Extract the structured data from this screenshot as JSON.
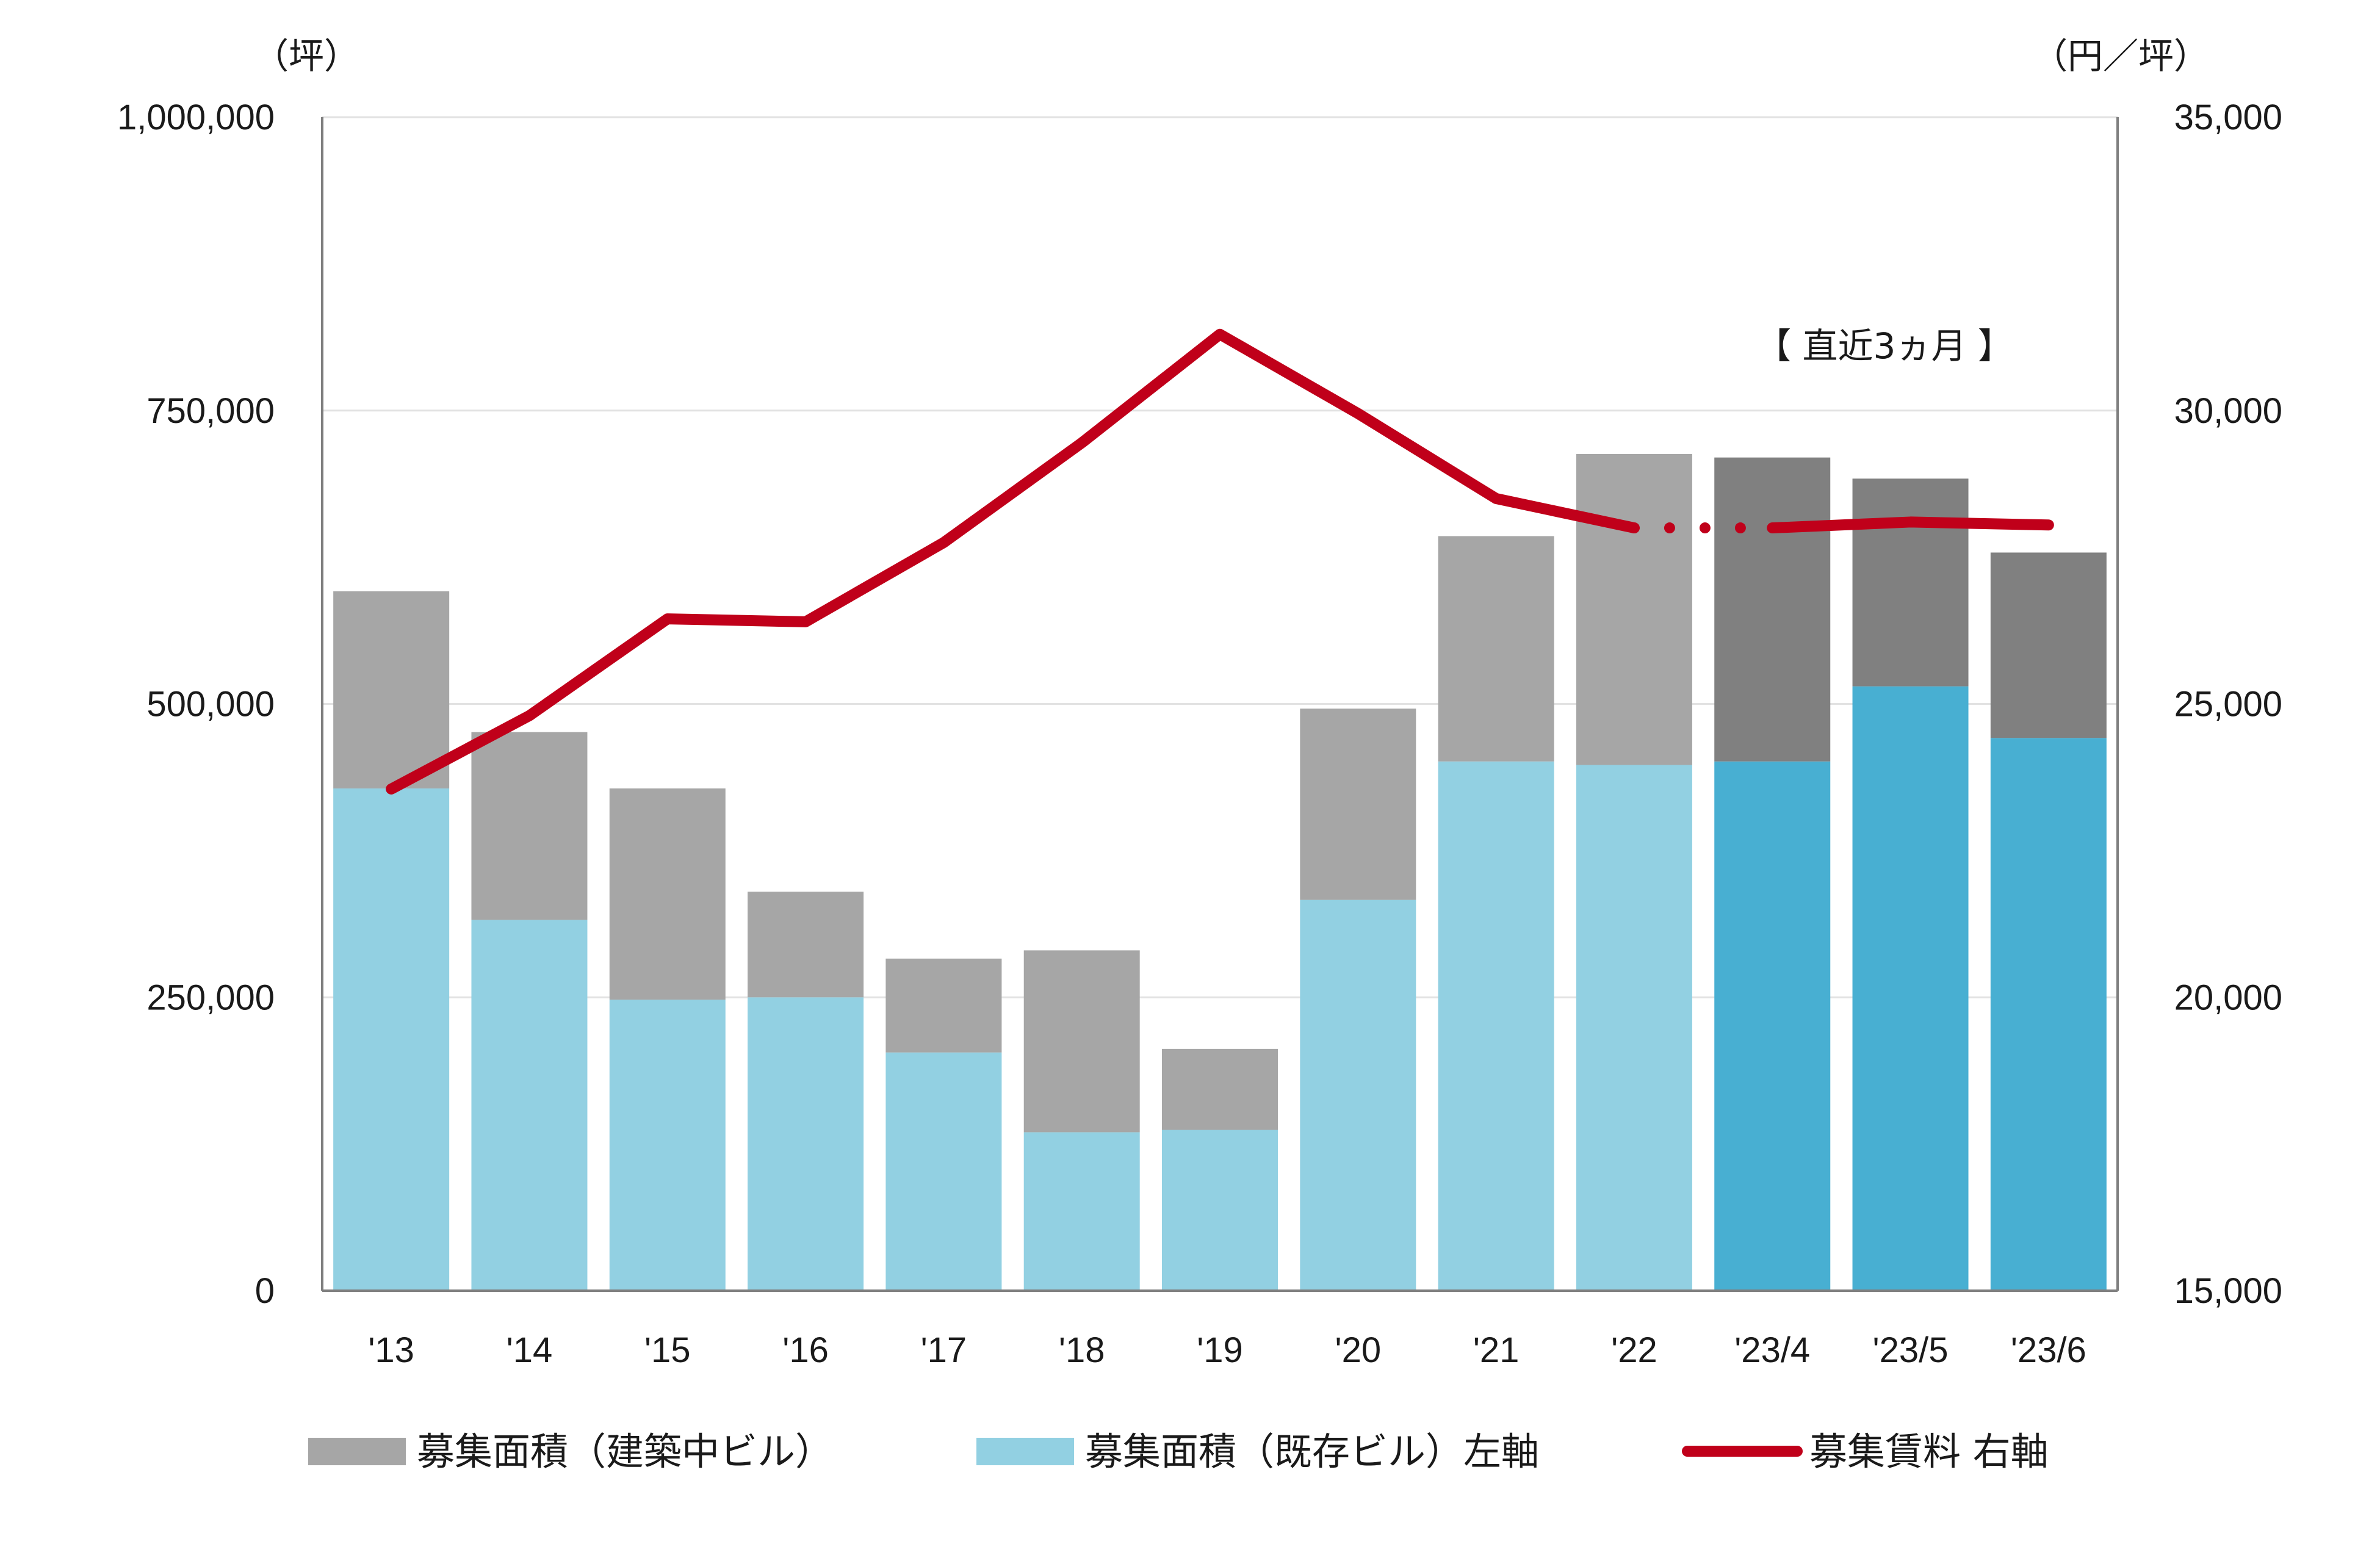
{
  "chart_data": {
    "type": "bar",
    "stacked": true,
    "categories": [
      "'13",
      "'14",
      "'15",
      "'16",
      "'17",
      "'18",
      "'19",
      "'20",
      "'21",
      "'22",
      "'23/4",
      "'23/5",
      "'23/6"
    ],
    "series": [
      {
        "name": "募集面積（既存ビル）左軸",
        "axis": "left",
        "color": "#92d0e2",
        "highlight_color": "#48afd2",
        "values": [
          428000,
          316000,
          248000,
          250000,
          203000,
          135000,
          137000,
          333000,
          451000,
          448000,
          451000,
          515000,
          471000
        ]
      },
      {
        "name": "募集面積（建築中ビル）",
        "axis": "left",
        "color": "#a6a6a6",
        "highlight_color": "#808080",
        "values": [
          168000,
          160000,
          180000,
          90000,
          80000,
          155000,
          69000,
          163000,
          192000,
          265000,
          259000,
          177000,
          158000
        ]
      },
      {
        "name": "募集賃料 右軸",
        "axis": "right",
        "type": "line",
        "color": "#c0001a",
        "values": [
          23550,
          24800,
          26450,
          26400,
          27750,
          29450,
          31300,
          29950,
          28500,
          28000,
          28000,
          28100,
          28050
        ],
        "dotted_segment_between": [
          "'22",
          "'23/4"
        ]
      }
    ],
    "highlight_categories": [
      "'23/4",
      "'23/5",
      "'23/6"
    ],
    "highlight_label": "【 直近3ヵ月 】",
    "y_left": {
      "unit": "（坪）",
      "ylim": [
        0,
        1000000
      ],
      "ticks": [
        "0",
        "250,000",
        "500,000",
        "750,000",
        "1,000,000"
      ]
    },
    "y_right": {
      "unit": "（円／坪）",
      "ylim": [
        15000,
        35000
      ],
      "ticks": [
        "15,000",
        "20,000",
        "25,000",
        "30,000",
        "35,000"
      ]
    },
    "grid": true,
    "legend": {
      "position": "bottom",
      "items": [
        {
          "label": "募集面積（建築中ビル）",
          "color": "#a6a6a6",
          "shape": "box"
        },
        {
          "label": "募集面積（既存ビル）左軸",
          "color": "#92d0e2",
          "shape": "box"
        },
        {
          "label": "募集賃料 右軸",
          "color": "#c0001a",
          "shape": "line"
        }
      ]
    }
  }
}
